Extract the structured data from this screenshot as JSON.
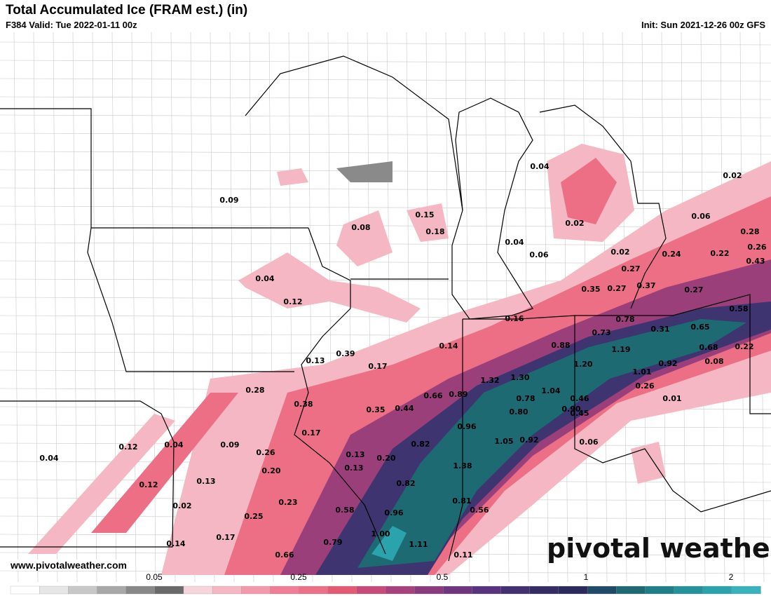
{
  "header": {
    "title": "Total Accumulated Ice (FRAM est.) (in)",
    "valid": "F384 Valid: Tue 2022-01-11 00z",
    "init": "Init: Sun 2021-12-26 00z GFS"
  },
  "labels": [
    "0.04",
    "0.02",
    "0.09",
    "0.15",
    "0.08",
    "0.18",
    "0.02",
    "0.06",
    "0.28",
    "0.04",
    "0.26",
    "0.02",
    "0.24",
    "0.22",
    "0.06",
    "0.43",
    "0.27",
    "0.04",
    "0.35",
    "0.27",
    "0.37",
    "0.27",
    "0.12",
    "0.58",
    "0.16",
    "0.78",
    "0.73",
    "0.31",
    "0.65",
    "0.14",
    "0.88",
    "1.19",
    "0.68",
    "0.22",
    "0.39",
    "0.13",
    "0.17",
    "1.20",
    "1.01",
    "0.92",
    "0.08",
    "1.32",
    "1.30",
    "0.28",
    "0.66",
    "0.89",
    "1.04",
    "0.26",
    "0.78",
    "0.46",
    "0.01",
    "0.38",
    "0.35",
    "0.44",
    "0.80",
    "0.90",
    "0.45",
    "0.96",
    "0.12",
    "0.04",
    "0.09",
    "0.17",
    "0.82",
    "1.05",
    "0.92",
    "0.06",
    "0.04",
    "0.26",
    "0.13",
    "0.20",
    "1.38",
    "0.13",
    "0.20",
    "0.12",
    "0.13",
    "0.82",
    "0.23",
    "0.02",
    "0.81",
    "0.58",
    "0.56",
    "0.25",
    "0.96",
    "1.00",
    "0.17",
    "0.79",
    "0.14",
    "1.11",
    "0.66",
    "0.11"
  ],
  "footer": {
    "url": "www.pivotalweather.com",
    "logo": "pivotal weather"
  },
  "colorbar": {
    "ticks": [
      "0.05",
      "0.25",
      "0.5",
      "1",
      "2"
    ]
  }
}
